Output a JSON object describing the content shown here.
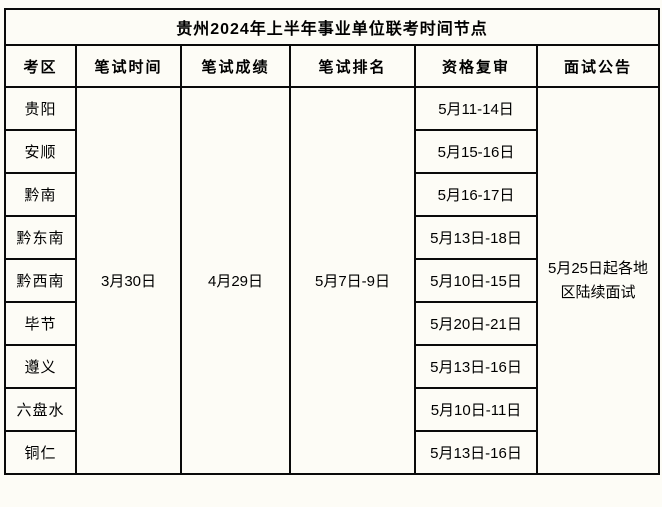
{
  "title": "贵州2024年上半年事业单位联考时间节点",
  "colors": {
    "background": "#fdfcf6",
    "border": "#0a0a0a",
    "text": "#000000"
  },
  "table": {
    "headers": [
      "考区",
      "笔试时间",
      "笔试成绩",
      "笔试排名",
      "资格复审",
      "面试公告"
    ],
    "merged": {
      "written_exam_time": "3月30日",
      "written_exam_score": "4月29日",
      "written_exam_rank": "5月7日-9日",
      "interview_notice": "5月25日起各地区陆续面试"
    },
    "rows": [
      {
        "region": "贵阳",
        "review": "5月11-14日"
      },
      {
        "region": "安顺",
        "review": "5月15-16日"
      },
      {
        "region": "黔南",
        "review": "5月16-17日"
      },
      {
        "region": "黔东南",
        "review": "5月13日-18日"
      },
      {
        "region": "黔西南",
        "review": "5月10日-15日"
      },
      {
        "region": "毕节",
        "review": "5月20日-21日"
      },
      {
        "region": "遵义",
        "review": "5月13日-16日"
      },
      {
        "region": "六盘水",
        "review": "5月10日-11日"
      },
      {
        "region": "铜仁",
        "review": "5月13日-16日"
      }
    ]
  }
}
